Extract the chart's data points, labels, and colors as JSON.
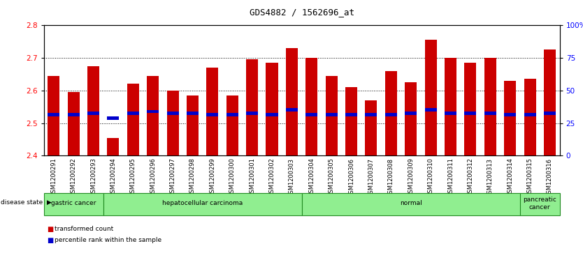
{
  "title": "GDS4882 / 1562696_at",
  "samples": [
    "GSM1200291",
    "GSM1200292",
    "GSM1200293",
    "GSM1200294",
    "GSM1200295",
    "GSM1200296",
    "GSM1200297",
    "GSM1200298",
    "GSM1200299",
    "GSM1200300",
    "GSM1200301",
    "GSM1200302",
    "GSM1200303",
    "GSM1200304",
    "GSM1200305",
    "GSM1200306",
    "GSM1200307",
    "GSM1200308",
    "GSM1200309",
    "GSM1200310",
    "GSM1200311",
    "GSM1200312",
    "GSM1200313",
    "GSM1200314",
    "GSM1200315",
    "GSM1200316"
  ],
  "bar_values": [
    2.645,
    2.595,
    2.675,
    2.455,
    2.62,
    2.645,
    2.6,
    2.585,
    2.67,
    2.585,
    2.695,
    2.685,
    2.73,
    2.7,
    2.645,
    2.61,
    2.57,
    2.66,
    2.625,
    2.755,
    2.7,
    2.685,
    2.7,
    2.63,
    2.635,
    2.725
  ],
  "percentile_values": [
    2.525,
    2.525,
    2.53,
    2.515,
    2.53,
    2.535,
    2.53,
    2.53,
    2.525,
    2.525,
    2.53,
    2.525,
    2.54,
    2.525,
    2.525,
    2.525,
    2.525,
    2.525,
    2.53,
    2.54,
    2.53,
    2.53,
    2.53,
    2.525,
    2.525,
    2.53
  ],
  "ylim_left": [
    2.4,
    2.8
  ],
  "ylim_right": [
    0,
    100
  ],
  "yticks_left": [
    2.4,
    2.5,
    2.6,
    2.7,
    2.8
  ],
  "yticks_right": [
    0,
    25,
    50,
    75,
    100
  ],
  "ytick_right_labels": [
    "0",
    "25",
    "50",
    "75",
    "100%"
  ],
  "bar_color": "#CC0000",
  "percentile_color": "#0000CC",
  "bar_width": 0.6,
  "group_edges": [
    {
      "start": 0,
      "end": 2,
      "label": "gastric cancer"
    },
    {
      "start": 3,
      "end": 12,
      "label": "hepatocellular carcinoma"
    },
    {
      "start": 13,
      "end": 23,
      "label": "normal"
    },
    {
      "start": 24,
      "end": 25,
      "label": "pancreatic\ncancer"
    }
  ],
  "light_green": "#90EE90",
  "dark_green": "#228B22",
  "gray_bg": "#D3D3D3",
  "bar_color_dark": "#CC0000",
  "percentile_color_dark": "#0000CC",
  "xticklabel_fontsize": 6.0,
  "title_fontsize": 9,
  "ytick_fontsize": 7.5
}
